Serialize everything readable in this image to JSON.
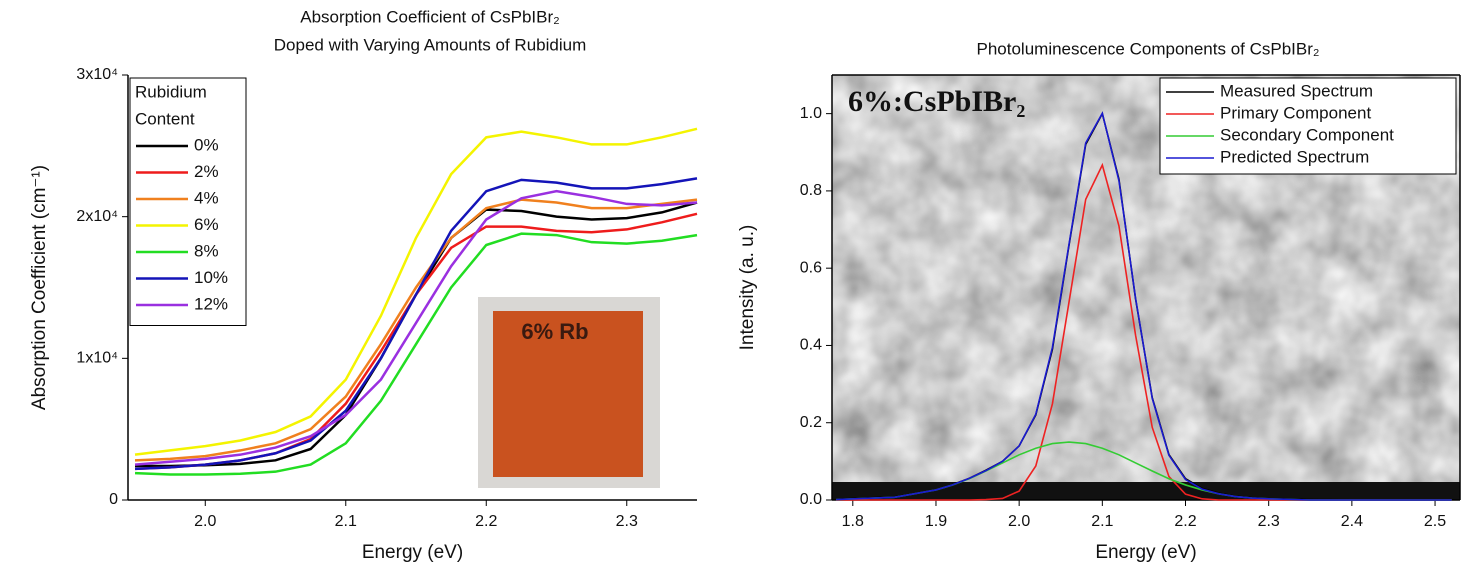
{
  "chart_data": [
    {
      "type": "line",
      "title": "Absorption Coefficient of CsPbIBr₂",
      "subtitle": "Doped with Varying Amounts of Rubidium",
      "x_label": "Energy (eV)",
      "y_label": "Absorption Coefficient (cm⁻¹)",
      "legend_title": [
        "Rubidium",
        "Content"
      ],
      "legend": "upper left",
      "inset_label": "6% Rb",
      "xlim": [
        1.945,
        2.35
      ],
      "ylim": [
        0,
        30000
      ],
      "xticks": [
        {
          "value": 2.0,
          "label": "2.0"
        },
        2.1,
        2.2,
        2.3
      ],
      "yticks": [
        0,
        {
          "value": 10000,
          "label": "1x10⁴"
        },
        {
          "value": 20000,
          "label": "2x10⁴"
        },
        {
          "value": 30000,
          "label": "3x10⁴"
        }
      ],
      "x": [
        1.95,
        1.975,
        2.0,
        2.025,
        2.05,
        2.075,
        2.1,
        2.125,
        2.15,
        2.175,
        2.2,
        2.225,
        2.25,
        2.275,
        2.3,
        2.325,
        2.35
      ],
      "series": [
        {
          "name": "0%",
          "color": "#000000",
          "values": [
            2400,
            2400,
            2450,
            2550,
            2800,
            3600,
            6000,
            10000,
            14500,
            18500,
            20500,
            20400,
            20000,
            19800,
            19900,
            20300,
            21000
          ]
        },
        {
          "name": "2%",
          "color": "#ee1c1c",
          "values": [
            2200,
            2300,
            2500,
            2800,
            3300,
            4300,
            6800,
            10500,
            14500,
            17800,
            19300,
            19300,
            19000,
            18900,
            19100,
            19600,
            20200
          ]
        },
        {
          "name": "4%",
          "color": "#f0801e",
          "values": [
            2800,
            2900,
            3100,
            3500,
            4000,
            5000,
            7300,
            11000,
            15000,
            18500,
            20600,
            21200,
            21000,
            20600,
            20600,
            20900,
            21200
          ]
        },
        {
          "name": "6%",
          "color": "#f4f400",
          "values": [
            3200,
            3500,
            3800,
            4200,
            4800,
            5900,
            8500,
            13000,
            18500,
            23000,
            25600,
            26000,
            25600,
            25100,
            25100,
            25600,
            26200
          ]
        },
        {
          "name": "8%",
          "color": "#22dd22",
          "values": [
            1900,
            1800,
            1800,
            1850,
            2000,
            2500,
            4000,
            7000,
            11000,
            15000,
            18000,
            18800,
            18700,
            18200,
            18100,
            18300,
            18700
          ]
        },
        {
          "name": "10%",
          "color": "#1414b8",
          "values": [
            2200,
            2300,
            2500,
            2800,
            3300,
            4200,
            6300,
            10000,
            14500,
            19000,
            21800,
            22600,
            22400,
            22000,
            22000,
            22300,
            22700
          ]
        },
        {
          "name": "12%",
          "color": "#9a30e0",
          "values": [
            2500,
            2700,
            2900,
            3200,
            3700,
            4500,
            6000,
            8500,
            12500,
            16500,
            19800,
            21300,
            21800,
            21400,
            20900,
            20800,
            21000
          ]
        }
      ]
    },
    {
      "type": "line",
      "title": "Photoluminescence Components of CsPbIBr₂",
      "x_label": "Energy (eV)",
      "y_label": "Intensity (a. u.)",
      "legend": "upper right",
      "annotation": "6%:CsPbIBr₂",
      "xlim": [
        1.775,
        2.53
      ],
      "ylim": [
        0,
        1.1
      ],
      "xticks": [
        1.8,
        1.9,
        {
          "value": 2.0,
          "label": "2.0"
        },
        2.1,
        2.2,
        2.3,
        2.4,
        2.5
      ],
      "yticks": [
        {
          "value": 0,
          "label": "0.0"
        },
        0.2,
        0.4,
        0.6,
        0.8,
        {
          "value": 1,
          "label": "1.0"
        }
      ],
      "x": [
        1.78,
        1.85,
        1.9,
        1.92,
        1.94,
        1.96,
        1.98,
        2.0,
        2.02,
        2.04,
        2.06,
        2.08,
        2.1,
        2.12,
        2.14,
        2.16,
        2.18,
        2.2,
        2.22,
        2.24,
        2.26,
        2.28,
        2.3,
        2.35,
        2.45,
        2.52
      ],
      "series": [
        {
          "name": "Measured Spectrum",
          "color": "#000000",
          "values": [
            0.002,
            0.008,
            0.026,
            0.04,
            0.056,
            0.077,
            0.1,
            0.14,
            0.22,
            0.39,
            0.66,
            0.92,
            1.0,
            0.83,
            0.52,
            0.265,
            0.118,
            0.055,
            0.03,
            0.018,
            0.01,
            0.006,
            0.003,
            0.001,
            0,
            0
          ]
        },
        {
          "name": "Primary Component",
          "color": "#ee2222",
          "values": [
            0,
            0,
            0,
            0,
            0,
            0.001,
            0.004,
            0.023,
            0.088,
            0.249,
            0.513,
            0.778,
            0.867,
            0.709,
            0.426,
            0.188,
            0.061,
            0.015,
            0.003,
            0,
            0,
            0,
            0,
            0,
            0,
            0
          ]
        },
        {
          "name": "Secondary Component",
          "color": "#33cc33",
          "values": [
            0.001,
            0.007,
            0.026,
            0.039,
            0.055,
            0.075,
            0.096,
            0.117,
            0.134,
            0.146,
            0.15,
            0.146,
            0.134,
            0.117,
            0.096,
            0.075,
            0.055,
            0.039,
            0.026,
            0.016,
            0.009,
            0.005,
            0.003,
            0,
            0,
            0
          ]
        },
        {
          "name": "Predicted Spectrum",
          "color": "#1a1ad0",
          "values": [
            0.001,
            0.007,
            0.026,
            0.039,
            0.056,
            0.076,
            0.1,
            0.14,
            0.222,
            0.395,
            0.663,
            0.924,
            1.001,
            0.826,
            0.522,
            0.263,
            0.116,
            0.053,
            0.028,
            0.016,
            0.009,
            0.005,
            0.003,
            0,
            0,
            0
          ]
        }
      ]
    }
  ]
}
